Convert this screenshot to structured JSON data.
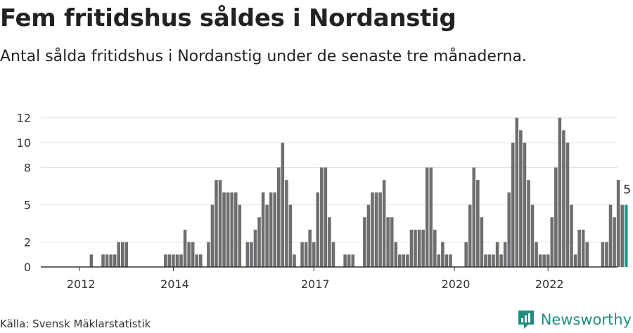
{
  "header": {
    "title": "Fem fritidshus såldes i Nordanstig",
    "subtitle": "Antal sålda fritidshus i Nordanstig under de senaste tre månaderna."
  },
  "footer": {
    "source": "Källa: Svensk Mäklarstatistik",
    "brand": "Newsworthy"
  },
  "colors": {
    "bar": "#6e6d70",
    "highlight": "#1a9a8a",
    "grid": "#e2e2e2",
    "axis": "#333333"
  },
  "chart_data": {
    "type": "bar",
    "title": "Fem fritidshus såldes i Nordanstig",
    "ylim": [
      0,
      13
    ],
    "yticks": [
      0,
      2,
      5,
      8,
      10,
      12
    ],
    "grid": true,
    "xticks": [
      "2012",
      "2014",
      "2017",
      "2020",
      "2022"
    ],
    "x_start": "2011-10",
    "values": [
      0,
      0,
      0,
      0,
      0,
      0,
      1,
      0,
      0,
      1,
      1,
      1,
      1,
      2,
      2,
      2,
      0,
      0,
      0,
      0,
      0,
      0,
      0,
      0,
      0,
      1,
      1,
      1,
      1,
      1,
      3,
      2,
      2,
      1,
      1,
      0,
      2,
      5,
      7,
      7,
      6,
      6,
      6,
      6,
      5,
      0,
      2,
      2,
      3,
      4,
      6,
      5,
      6,
      6,
      8,
      10,
      7,
      5,
      1,
      0,
      2,
      2,
      3,
      2,
      6,
      8,
      8,
      4,
      2,
      0,
      0,
      1,
      1,
      1,
      0,
      0,
      4,
      5,
      6,
      6,
      6,
      7,
      4,
      4,
      2,
      1,
      1,
      1,
      3,
      3,
      3,
      3,
      8,
      8,
      3,
      1,
      2,
      1,
      1,
      0,
      0,
      0,
      2,
      5,
      8,
      7,
      4,
      1,
      1,
      1,
      2,
      1,
      2,
      6,
      10,
      12,
      11,
      10,
      7,
      5,
      2,
      1,
      1,
      1,
      4,
      8,
      12,
      11,
      10,
      5,
      1,
      3,
      3,
      2,
      0,
      0,
      0,
      2,
      2,
      5,
      4,
      7,
      5,
      5
    ],
    "last_value_label": "5"
  }
}
